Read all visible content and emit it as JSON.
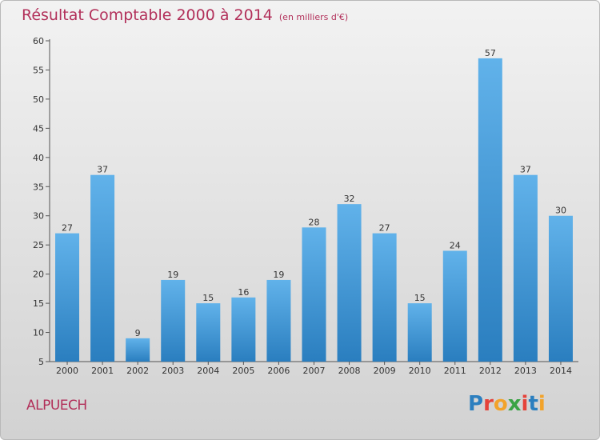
{
  "header": {
    "title": "Résultat Comptable 2000 à 2014",
    "subtitle": "(en milliers d'€)"
  },
  "footer": {
    "city": "ALPUECH",
    "logo": [
      "P",
      "r",
      "o",
      "x",
      "i",
      "t",
      "i"
    ],
    "logo_colors": [
      "#2c7fbf",
      "#e5433a",
      "#f2a32b",
      "#3aa344",
      "#e5433a",
      "#2c7fbf",
      "#f2a32b"
    ]
  },
  "chart_data": {
    "type": "bar",
    "categories": [
      "2000",
      "2001",
      "2002",
      "2003",
      "2004",
      "2005",
      "2006",
      "2007",
      "2008",
      "2009",
      "2010",
      "2011",
      "2012",
      "2013",
      "2014"
    ],
    "values": [
      27,
      37,
      9,
      19,
      15,
      16,
      19,
      28,
      32,
      27,
      15,
      24,
      57,
      37,
      30
    ],
    "title": "Résultat Comptable 2000 à 2014",
    "ylim": [
      5,
      60
    ],
    "yticks": [
      5,
      10,
      15,
      20,
      25,
      30,
      35,
      40,
      45,
      50,
      55,
      60
    ],
    "grid": false,
    "colors": {
      "bar_light": "#61b2ea",
      "bar_dark": "#2a7ebf"
    }
  }
}
